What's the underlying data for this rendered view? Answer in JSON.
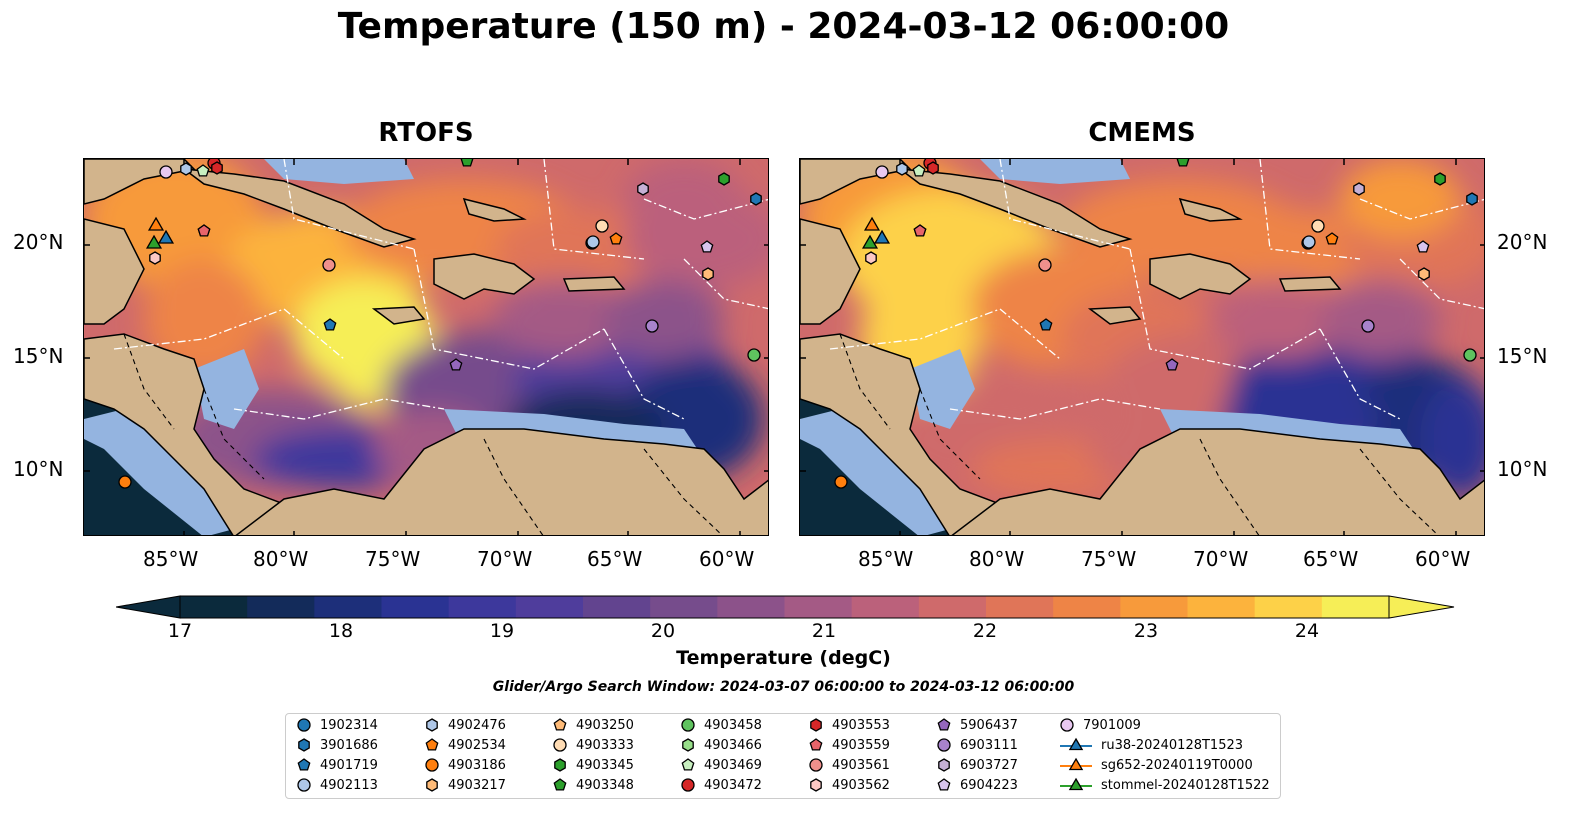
{
  "title": "Temperature (150 m) - 2024-03-12 06:00:00",
  "panels": [
    {
      "title": "RTOFS"
    },
    {
      "title": "CMEMS"
    }
  ],
  "lon_ticks": [
    "85°W",
    "80°W",
    "75°W",
    "70°W",
    "65°W",
    "60°W"
  ],
  "lat_ticks": [
    "20°N",
    "15°N",
    "10°N"
  ],
  "colorbar": {
    "label": "Temperature (degC)",
    "ticks": [
      "17",
      "18",
      "19",
      "20",
      "21",
      "22",
      "23",
      "24"
    ],
    "range": [
      17,
      24.5
    ],
    "colors": [
      "#0b2a3c",
      "#132b5a",
      "#1d2f7a",
      "#2a3393",
      "#3d389c",
      "#4f3d9c",
      "#62448f",
      "#764c8c",
      "#8c528a",
      "#a45a85",
      "#bb617b",
      "#cf6a6b",
      "#e07558",
      "#ee8446",
      "#f79a3b",
      "#fcb33d",
      "#fdd148",
      "#f6ee57"
    ],
    "extend": "both"
  },
  "search_window": "Glider/Argo Search Window: 2024-03-07 06:00:00 to 2024-03-12 06:00:00",
  "colors": {
    "land": "#d2b48c",
    "shelf": "#94b4e0"
  },
  "legend": {
    "items": [
      {
        "label": "1902314",
        "marker": "circle",
        "color": "#1f77b4"
      },
      {
        "label": "3901686",
        "marker": "hexagon",
        "color": "#1f77b4"
      },
      {
        "label": "4901719",
        "marker": "pentagon",
        "color": "#1f77b4"
      },
      {
        "label": "4902113",
        "marker": "circle",
        "color": "#aec7e8"
      },
      {
        "label": "4902476",
        "marker": "hexagon",
        "color": "#aec7e8"
      },
      {
        "label": "4902534",
        "marker": "pentagon",
        "color": "#ff7f0e"
      },
      {
        "label": "4903186",
        "marker": "circle",
        "color": "#ff7f0e"
      },
      {
        "label": "4903217",
        "marker": "hexagon",
        "color": "#ffbb78"
      },
      {
        "label": "4903250",
        "marker": "pentagon",
        "color": "#ffbb78"
      },
      {
        "label": "4903333",
        "marker": "circle",
        "color": "#ffdcb4"
      },
      {
        "label": "4903345",
        "marker": "hexagon",
        "color": "#2ca02c"
      },
      {
        "label": "4903348",
        "marker": "pentagon",
        "color": "#2ca02c"
      },
      {
        "label": "4903458",
        "marker": "circle",
        "color": "#5fc35f"
      },
      {
        "label": "4903466",
        "marker": "hexagon",
        "color": "#98df8a"
      },
      {
        "label": "4903469",
        "marker": "pentagon",
        "color": "#c8f0c0"
      },
      {
        "label": "4903472",
        "marker": "circle",
        "color": "#d62728"
      },
      {
        "label": "4903553",
        "marker": "hexagon",
        "color": "#d62728"
      },
      {
        "label": "4903559",
        "marker": "pentagon",
        "color": "#e8646a"
      },
      {
        "label": "4903561",
        "marker": "circle",
        "color": "#f0908c"
      },
      {
        "label": "4903562",
        "marker": "hexagon",
        "color": "#fcc8c4"
      },
      {
        "label": "5906437",
        "marker": "pentagon",
        "color": "#9467bd"
      },
      {
        "label": "6903111",
        "marker": "circle",
        "color": "#a883cc"
      },
      {
        "label": "6903727",
        "marker": "hexagon",
        "color": "#c5b0d5"
      },
      {
        "label": "6904223",
        "marker": "pentagon",
        "color": "#d8c4ee"
      },
      {
        "label": "7901009",
        "marker": "circle",
        "color": "#e8c8f0"
      },
      {
        "label": "ru38-20240128T1523",
        "marker": "triangle-line",
        "color": "#1f77b4"
      },
      {
        "label": "sg652-20240119T0000",
        "marker": "triangle-line",
        "color": "#ff7f0e"
      },
      {
        "label": "stommel-20240128T1522",
        "marker": "triangle-line",
        "color": "#2ca02c"
      }
    ]
  }
}
